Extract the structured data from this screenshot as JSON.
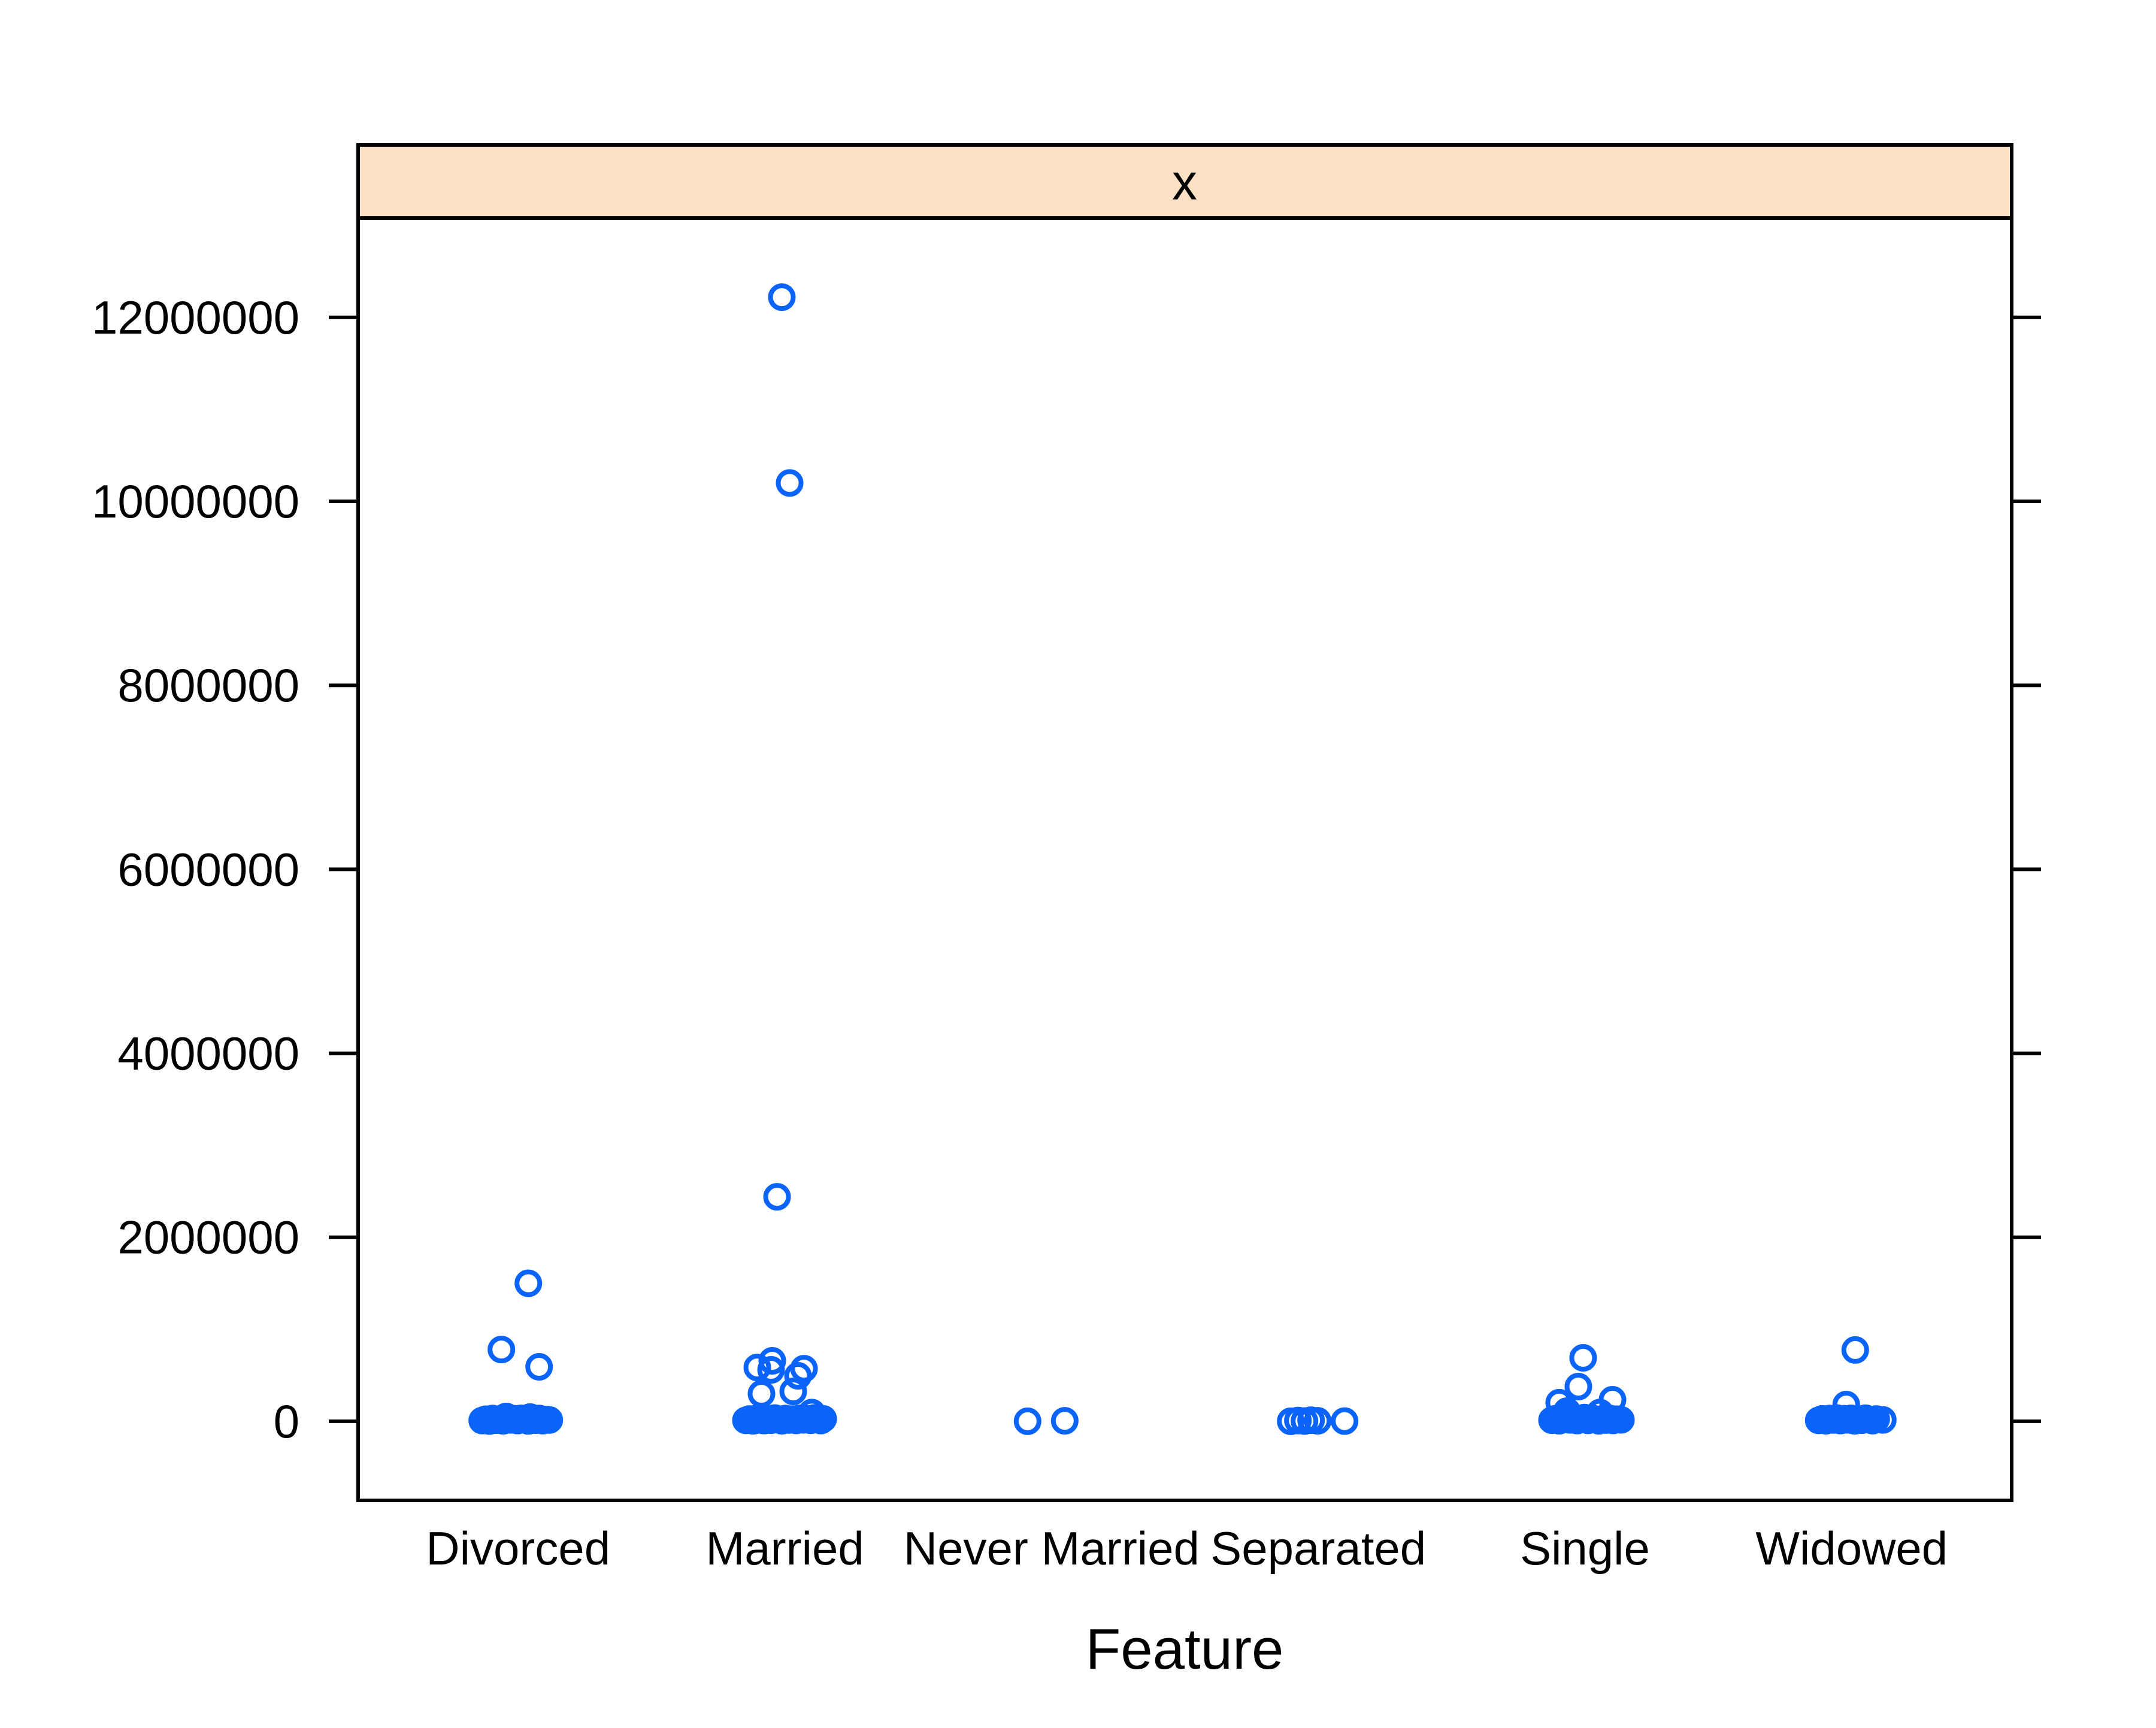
{
  "chart_data": {
    "type": "scatter",
    "subtype": "stripplot",
    "strip_title": "x",
    "xlabel": "Feature",
    "categories": [
      "Divorced",
      "Married",
      "Never Married",
      "Separated",
      "Single",
      "Widowed"
    ],
    "yticks": [
      0,
      2000000,
      4000000,
      6000000,
      8000000,
      10000000,
      12000000
    ],
    "ytick_labels": [
      "0",
      "2000000",
      "4000000",
      "6000000",
      "8000000",
      "10000000",
      "12000000"
    ],
    "ylim": [
      -860000,
      13080000
    ],
    "x_slots": 6.2,
    "grid": false,
    "legend": "none",
    "point_style": {
      "shape": "open-circle",
      "color": "#0b64fa",
      "radius": 19,
      "stroke_width": 8
    },
    "colors": {
      "strip_fill": "#fde1c5",
      "box_stroke": "#000000",
      "text": "#000000",
      "background": "#ffffff"
    },
    "points_format": [
      "category_index",
      "value",
      "x_jitter_px"
    ],
    "points": [
      [
        0,
        1500000,
        17
      ],
      [
        0,
        780000,
        -28
      ],
      [
        0,
        592000,
        35
      ],
      [
        0,
        8000,
        -60
      ],
      [
        0,
        22000,
        -54
      ],
      [
        0,
        3000,
        -48
      ],
      [
        0,
        30000,
        -43
      ],
      [
        0,
        12000,
        -37
      ],
      [
        0,
        25000,
        -31
      ],
      [
        0,
        5000,
        -25
      ],
      [
        0,
        35000,
        -19
      ],
      [
        0,
        15000,
        -13
      ],
      [
        0,
        28000,
        -7
      ],
      [
        0,
        8000,
        -1
      ],
      [
        0,
        32000,
        5
      ],
      [
        0,
        18000,
        11
      ],
      [
        0,
        4000,
        17
      ],
      [
        0,
        26000,
        23
      ],
      [
        0,
        12000,
        29
      ],
      [
        0,
        30000,
        35
      ],
      [
        0,
        7000,
        41
      ],
      [
        0,
        20000,
        47
      ],
      [
        0,
        14000,
        52
      ],
      [
        0,
        52000,
        -20
      ],
      [
        0,
        46000,
        20
      ],
      [
        1,
        12220000,
        -5
      ],
      [
        1,
        10200000,
        8
      ],
      [
        1,
        2440000,
        -13
      ],
      [
        1,
        657000,
        -21
      ],
      [
        1,
        585000,
        -46
      ],
      [
        1,
        559000,
        -23
      ],
      [
        1,
        572000,
        32
      ],
      [
        1,
        494000,
        22
      ],
      [
        1,
        299000,
        -39
      ],
      [
        1,
        325000,
        14
      ],
      [
        1,
        10000,
        -65
      ],
      [
        1,
        25000,
        -59
      ],
      [
        1,
        5000,
        -53
      ],
      [
        1,
        32000,
        -47
      ],
      [
        1,
        15000,
        -41
      ],
      [
        1,
        8000,
        -35
      ],
      [
        1,
        28000,
        -29
      ],
      [
        1,
        12000,
        -23
      ],
      [
        1,
        35000,
        -17
      ],
      [
        1,
        18000,
        -11
      ],
      [
        1,
        6000,
        -5
      ],
      [
        1,
        30000,
        1
      ],
      [
        1,
        14000,
        7
      ],
      [
        1,
        24000,
        13
      ],
      [
        1,
        9000,
        19
      ],
      [
        1,
        33000,
        25
      ],
      [
        1,
        16000,
        31
      ],
      [
        1,
        27000,
        37
      ],
      [
        1,
        11000,
        43
      ],
      [
        1,
        36000,
        49
      ],
      [
        1,
        20000,
        55
      ],
      [
        1,
        8000,
        60
      ],
      [
        1,
        26000,
        64
      ],
      [
        1,
        95000,
        45
      ],
      [
        2,
        0,
        -40
      ],
      [
        2,
        5000,
        22
      ],
      [
        3,
        0,
        -46
      ],
      [
        3,
        8000,
        -34
      ],
      [
        3,
        3000,
        -23
      ],
      [
        3,
        12000,
        -12
      ],
      [
        3,
        5000,
        -1
      ],
      [
        3,
        2000,
        44
      ],
      [
        4,
        690000,
        -3
      ],
      [
        4,
        377000,
        -11
      ],
      [
        4,
        234000,
        46
      ],
      [
        4,
        202000,
        -43
      ],
      [
        4,
        110000,
        -30
      ],
      [
        4,
        95000,
        25
      ],
      [
        4,
        12000,
        -55
      ],
      [
        4,
        28000,
        -49
      ],
      [
        4,
        6000,
        -43
      ],
      [
        4,
        33000,
        -37
      ],
      [
        4,
        58000,
        -31
      ],
      [
        4,
        15000,
        -25
      ],
      [
        4,
        30000,
        -19
      ],
      [
        4,
        8000,
        -13
      ],
      [
        4,
        24000,
        -7
      ],
      [
        4,
        40000,
        -1
      ],
      [
        4,
        10000,
        5
      ],
      [
        4,
        35000,
        11
      ],
      [
        4,
        18000,
        17
      ],
      [
        4,
        5000,
        23
      ],
      [
        4,
        27000,
        29
      ],
      [
        4,
        13000,
        35
      ],
      [
        4,
        31000,
        41
      ],
      [
        4,
        9000,
        47
      ],
      [
        4,
        22000,
        53
      ],
      [
        4,
        16000,
        60
      ],
      [
        5,
        775000,
        6
      ],
      [
        5,
        182000,
        -9
      ],
      [
        5,
        10000,
        -55
      ],
      [
        5,
        26000,
        -49
      ],
      [
        5,
        6000,
        -43
      ],
      [
        5,
        30000,
        -37
      ],
      [
        5,
        14000,
        -31
      ],
      [
        5,
        35000,
        -25
      ],
      [
        5,
        8000,
        -19
      ],
      [
        5,
        28000,
        -13
      ],
      [
        5,
        16000,
        -7
      ],
      [
        5,
        32000,
        -1
      ],
      [
        5,
        5000,
        5
      ],
      [
        5,
        24000,
        11
      ],
      [
        5,
        12000,
        17
      ],
      [
        5,
        34000,
        23
      ],
      [
        5,
        18000,
        29
      ],
      [
        5,
        7000,
        35
      ],
      [
        5,
        25000,
        41
      ],
      [
        5,
        15000,
        52
      ]
    ]
  }
}
